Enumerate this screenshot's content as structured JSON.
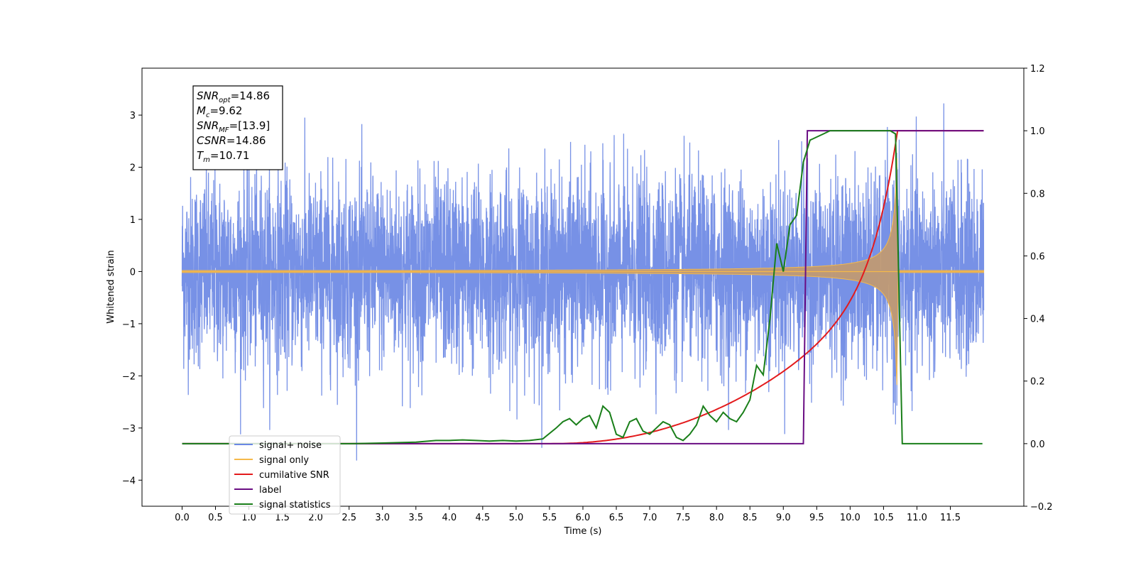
{
  "chart_data": {
    "type": "line",
    "xlabel": "Time (s)",
    "ylabel": "Whitened strain",
    "xlim": [
      -0.6,
      12.6
    ],
    "ylim_left": [
      -4.5,
      3.9
    ],
    "ylim_right": [
      -0.2,
      1.2
    ],
    "x_ticks": [
      "0.0",
      "0.5",
      "1.0",
      "1.5",
      "2.0",
      "2.5",
      "3.0",
      "3.5",
      "4.0",
      "4.5",
      "5.0",
      "5.5",
      "6.0",
      "6.5",
      "7.0",
      "7.5",
      "8.0",
      "8.5",
      "9.0",
      "9.5",
      "10.0",
      "10.5",
      "11.0",
      "11.5"
    ],
    "y_ticks_left": [
      "−4",
      "−3",
      "−2",
      "−1",
      "0",
      "1",
      "2",
      "3"
    ],
    "y_ticks_right": [
      "−0.2",
      "0.0",
      "0.2",
      "0.4",
      "0.6",
      "0.8",
      "1.0",
      "1.2"
    ],
    "info_box": [
      {
        "base": "SNR",
        "sub": "opt",
        "value": "=14.86"
      },
      {
        "base": "M",
        "sub": "c",
        "value": "=9.62"
      },
      {
        "base": "SNR",
        "sub": "MF",
        "value": "=[13.9]"
      },
      {
        "base": "CSNR",
        "sub": "",
        "value": "=14.86"
      },
      {
        "base": "T",
        "sub": "m",
        "value": "=10.71"
      }
    ],
    "series": [
      {
        "name": "signal+ noise",
        "color": "#6b88e4",
        "axis": "left",
        "description_values": {
          "x_range": [
            0,
            12
          ],
          "noise_std": 0.9,
          "peak_abs": 3.5
        }
      },
      {
        "name": "signal only",
        "color": "#f5b94a",
        "axis": "left",
        "description_values": {
          "chirp_start": 6.0,
          "merger": 10.71,
          "peak_amplitude": 2.2
        }
      },
      {
        "name": "cumilative SNR",
        "color": "#e31a1c",
        "axis": "right",
        "x": [
          0,
          5.5,
          6.0,
          6.5,
          7.0,
          7.5,
          8.0,
          8.5,
          9.0,
          9.5,
          9.8,
          10.0,
          10.2,
          10.4,
          10.55,
          10.7,
          10.71,
          12.0
        ],
        "y": [
          0,
          0,
          0.003,
          0.01,
          0.03,
          0.07,
          0.14,
          0.21,
          0.28,
          0.36,
          0.43,
          0.49,
          0.57,
          0.68,
          0.79,
          0.96,
          1.0,
          1.0
        ]
      },
      {
        "name": "label",
        "color": "#6a0d83",
        "axis": "right",
        "x": [
          0,
          9.3,
          9.36,
          10.71,
          10.71,
          12.0
        ],
        "y": [
          0,
          0,
          1.0,
          1.0,
          1.0,
          1.0
        ]
      },
      {
        "name": "signal statistics",
        "color": "#1a7f1a",
        "axis": "right",
        "x": [
          0,
          0.5,
          1.0,
          1.5,
          2.0,
          2.5,
          3.0,
          3.5,
          3.8,
          4.0,
          4.2,
          4.4,
          4.6,
          4.8,
          5.0,
          5.2,
          5.4,
          5.6,
          5.7,
          5.8,
          5.9,
          6.0,
          6.1,
          6.2,
          6.3,
          6.4,
          6.5,
          6.6,
          6.7,
          6.8,
          6.9,
          7.0,
          7.1,
          7.2,
          7.3,
          7.4,
          7.5,
          7.6,
          7.7,
          7.8,
          7.9,
          8.0,
          8.1,
          8.2,
          8.3,
          8.4,
          8.5,
          8.6,
          8.7,
          8.8,
          8.9,
          9.0,
          9.1,
          9.2,
          9.3,
          9.4,
          9.5,
          9.6,
          9.7,
          9.8,
          10.0,
          10.3,
          10.6,
          10.68,
          10.72,
          10.78,
          11.0,
          11.5,
          11.98
        ],
        "y": [
          0,
          0,
          0,
          0,
          0,
          0,
          0.002,
          0.005,
          0.01,
          0.01,
          0.012,
          0.01,
          0.008,
          0.01,
          0.008,
          0.01,
          0.015,
          0.05,
          0.07,
          0.08,
          0.06,
          0.08,
          0.09,
          0.05,
          0.12,
          0.1,
          0.03,
          0.02,
          0.07,
          0.08,
          0.04,
          0.03,
          0.05,
          0.07,
          0.06,
          0.02,
          0.01,
          0.03,
          0.06,
          0.12,
          0.09,
          0.07,
          0.1,
          0.08,
          0.07,
          0.1,
          0.14,
          0.25,
          0.22,
          0.4,
          0.64,
          0.55,
          0.7,
          0.73,
          0.9,
          0.97,
          0.98,
          0.99,
          1.0,
          1.0,
          1.0,
          1.0,
          1.0,
          0.99,
          0.6,
          0.0,
          0.0,
          0.0,
          0.0
        ]
      }
    ],
    "legend": {
      "position": "lower-left",
      "entries": [
        "signal+ noise",
        "signal only",
        "cumilative SNR",
        "label",
        "signal statistics"
      ]
    }
  }
}
